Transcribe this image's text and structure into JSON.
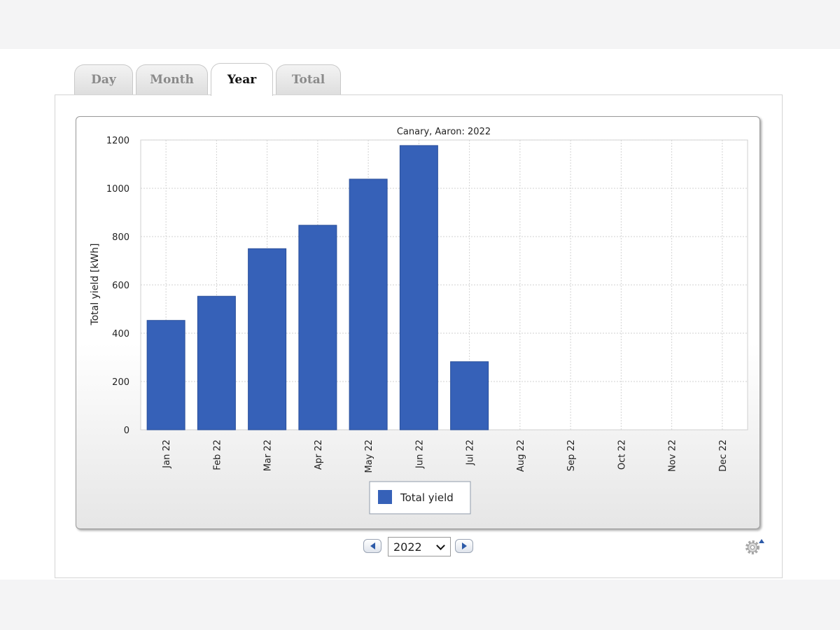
{
  "tabs": [
    {
      "label": "Day",
      "active": false
    },
    {
      "label": "Month",
      "active": false
    },
    {
      "label": "Year",
      "active": true
    },
    {
      "label": "Total",
      "active": false
    }
  ],
  "nav": {
    "prev_icon": "arrow-left-icon",
    "next_icon": "arrow-right-icon",
    "year_selected": "2022",
    "settings_icon": "gear-icon"
  },
  "colors": {
    "bar": "#3661b8",
    "bar_edge": "#2a4f9a",
    "grid": "#d2d2d2",
    "accent_arrow": "#2d5aa8"
  },
  "chart_data": {
    "type": "bar",
    "title": "Canary, Aaron: 2022",
    "xlabel": "",
    "ylabel": "Total yield [kWh]",
    "ylim": [
      0,
      1200
    ],
    "yticks": [
      0,
      200,
      400,
      600,
      800,
      1000,
      1200
    ],
    "grid": true,
    "legend_position": "bottom-center",
    "categories": [
      "Jan 22",
      "Feb 22",
      "Mar 22",
      "Apr 22",
      "May 22",
      "Jun 22",
      "Jul 22",
      "Aug 22",
      "Sep 22",
      "Oct 22",
      "Nov 22",
      "Dec 22"
    ],
    "series": [
      {
        "name": "Total yield",
        "values": [
          453,
          553,
          750,
          847,
          1038,
          1177,
          282,
          null,
          null,
          null,
          null,
          null
        ]
      }
    ]
  }
}
